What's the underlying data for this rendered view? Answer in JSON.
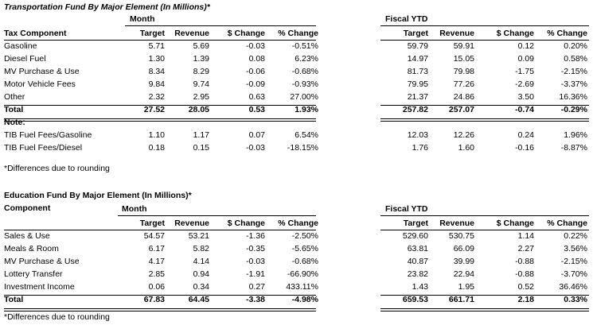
{
  "transport": {
    "title": "Transportation Fund By Major Element (In Millions)*",
    "month_label": "Month",
    "ytd_label": "Fiscal YTD",
    "component_header": "Tax Component",
    "col_target": "Target",
    "col_revenue": "Revenue",
    "col_dchange": "$ Change",
    "col_pchange": "% Change",
    "rows": [
      {
        "name": "Gasoline",
        "m": [
          "5.71",
          "5.69",
          "-0.03",
          "-0.51%"
        ],
        "y": [
          "59.79",
          "59.91",
          "0.12",
          "0.20%"
        ]
      },
      {
        "name": "Diesel Fuel",
        "m": [
          "1.30",
          "1.39",
          "0.08",
          "6.23%"
        ],
        "y": [
          "14.97",
          "15.05",
          "0.09",
          "0.58%"
        ]
      },
      {
        "name": "MV Purchase & Use",
        "m": [
          "8.34",
          "8.29",
          "-0.06",
          "-0.68%"
        ],
        "y": [
          "81.73",
          "79.98",
          "-1.75",
          "-2.15%"
        ]
      },
      {
        "name": "Motor Vehicle Fees",
        "m": [
          "9.84",
          "9.74",
          "-0.09",
          "-0.93%"
        ],
        "y": [
          "79.95",
          "77.26",
          "-2.69",
          "-3.37%"
        ]
      },
      {
        "name": "Other",
        "m": [
          "2.32",
          "2.95",
          "0.63",
          "27.00%"
        ],
        "y": [
          "21.37",
          "24.86",
          "3.50",
          "16.36%"
        ]
      }
    ],
    "total": {
      "name": "Total",
      "m": [
        "27.52",
        "28.05",
        "0.53",
        "1.93%"
      ],
      "y": [
        "257.82",
        "257.07",
        "-0.74",
        "-0.29%"
      ]
    },
    "note_label": "Note:",
    "notes": [
      {
        "name": "TIB Fuel Fees/Gasoline",
        "m": [
          "1.10",
          "1.17",
          "0.07",
          "6.54%"
        ],
        "y": [
          "12.03",
          "12.26",
          "0.24",
          "1.96%"
        ]
      },
      {
        "name": "TIB Fuel Fees/Diesel",
        "m": [
          "0.18",
          "0.15",
          "-0.03",
          "-18.15%"
        ],
        "y": [
          "1.76",
          "1.60",
          "-0.16",
          "-8.87%"
        ]
      }
    ],
    "footnote": "*Differences due to rounding"
  },
  "education": {
    "title": "Education Fund By Major Element (In Millions)*",
    "month_label": "Month",
    "ytd_label": "Fiscal YTD",
    "component_header": "Component",
    "col_target": "Target",
    "col_revenue": "Revenue",
    "col_dchange": "$ Change",
    "col_pchange": "% Change",
    "rows": [
      {
        "name": "Sales & Use",
        "m": [
          "54.57",
          "53.21",
          "-1.36",
          "-2.50%"
        ],
        "y": [
          "529.60",
          "530.75",
          "1.14",
          "0.22%"
        ]
      },
      {
        "name": "Meals & Room",
        "m": [
          "6.17",
          "5.82",
          "-0.35",
          "-5.65%"
        ],
        "y": [
          "63.81",
          "66.09",
          "2.27",
          "3.56%"
        ]
      },
      {
        "name": "MV Purchase & Use",
        "m": [
          "4.17",
          "4.14",
          "-0.03",
          "-0.68%"
        ],
        "y": [
          "40.87",
          "39.99",
          "-0.88",
          "-2.15%"
        ]
      },
      {
        "name": "Lottery Transfer",
        "m": [
          "2.85",
          "0.94",
          "-1.91",
          "-66.90%"
        ],
        "y": [
          "23.82",
          "22.94",
          "-0.88",
          "-3.70%"
        ]
      },
      {
        "name": "Investment Income",
        "m": [
          "0.06",
          "0.34",
          "0.27",
          "433.11%"
        ],
        "y": [
          "1.43",
          "1.95",
          "0.52",
          "36.46%"
        ]
      }
    ],
    "total": {
      "name": "Total",
      "m": [
        "67.83",
        "64.45",
        "-3.38",
        "-4.98%"
      ],
      "y": [
        "659.53",
        "661.71",
        "2.18",
        "0.33%"
      ]
    },
    "footnote": "*Differences due to rounding"
  }
}
